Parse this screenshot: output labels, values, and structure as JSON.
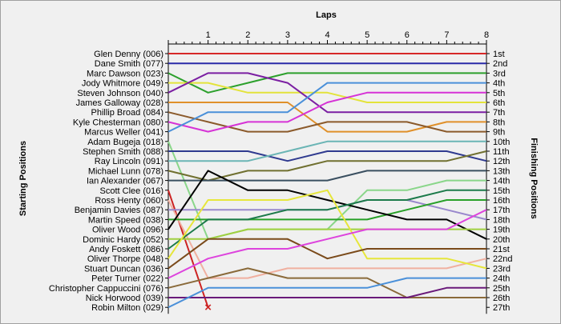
{
  "chart_data": {
    "type": "line",
    "title": "Laps",
    "ylabel_left": "Starting Positions",
    "ylabel_right": "Finishing Positions",
    "x": [
      0,
      1,
      2,
      3,
      4,
      5,
      6,
      7,
      8
    ],
    "x_ticks": [
      "1",
      "2",
      "3",
      "4",
      "5",
      "6",
      "7",
      "8"
    ],
    "xlim": [
      0,
      8
    ],
    "ylim": [
      1,
      27
    ],
    "grid": false,
    "finishing_labels": [
      "1st",
      "2nd",
      "3rd",
      "4th",
      "5th",
      "6th",
      "7th",
      "8th",
      "9th",
      "10th",
      "11th",
      "12th",
      "13th",
      "14th",
      "15th",
      "16th",
      "17th",
      "18th",
      "19th",
      "20th",
      "21st",
      "22nd",
      "23rd",
      "24th",
      "25th",
      "26th",
      "27th"
    ],
    "series": [
      {
        "name": "Glen Denny (006)",
        "color": "#d62828",
        "positions": [
          1,
          1,
          1,
          1,
          1,
          1,
          1,
          1,
          1
        ]
      },
      {
        "name": "Dane Smith (077)",
        "color": "#2a2aa8",
        "positions": [
          2,
          2,
          2,
          2,
          2,
          2,
          2,
          2,
          2
        ]
      },
      {
        "name": "Marc Dawson (023)",
        "color": "#2ca02c",
        "positions": [
          3,
          5,
          4,
          3,
          3,
          3,
          3,
          3,
          3
        ]
      },
      {
        "name": "Jody Whitmore (049)",
        "color": "#e3e33b",
        "positions": [
          4,
          4,
          5,
          5,
          5,
          6,
          6,
          6,
          6
        ]
      },
      {
        "name": "Steven Johnson (040)",
        "color": "#7b1fa2",
        "positions": [
          5,
          3,
          3,
          4,
          7,
          7,
          7,
          7,
          7
        ]
      },
      {
        "name": "James Galloway (028)",
        "color": "#e0902a",
        "positions": [
          6,
          6,
          6,
          6,
          9,
          9,
          9,
          8,
          8
        ]
      },
      {
        "name": "Phillip Broad (084)",
        "color": "#8b5a2b",
        "positions": [
          7,
          8,
          9,
          9,
          8,
          8,
          8,
          9,
          9
        ]
      },
      {
        "name": "Kyle Chesterman (080)",
        "color": "#d633d6",
        "positions": [
          8,
          9,
          8,
          8,
          6,
          5,
          5,
          5,
          5
        ]
      },
      {
        "name": "Marcus Weller (041)",
        "color": "#4a90d9",
        "positions": [
          9,
          7,
          7,
          7,
          4,
          4,
          4,
          4,
          4
        ]
      },
      {
        "name": "Adam Bugeja (018)",
        "color": "#8ad68a",
        "positions": [
          10,
          20,
          19,
          19,
          19,
          15,
          15,
          14,
          14
        ]
      },
      {
        "name": "Stephen Smith (088)",
        "color": "#2f3a8f",
        "positions": [
          11,
          11,
          11,
          12,
          11,
          11,
          11,
          11,
          12
        ]
      },
      {
        "name": "Ray Lincoln (091)",
        "color": "#6bb5b5",
        "positions": [
          12,
          12,
          12,
          11,
          10,
          10,
          10,
          10,
          10
        ]
      },
      {
        "name": "Michael Lunn (078)",
        "color": "#707030",
        "positions": [
          13,
          14,
          13,
          13,
          12,
          12,
          12,
          12,
          11
        ]
      },
      {
        "name": "Ian Alexander (067)",
        "color": "#3a4f60",
        "positions": [
          14,
          14,
          14,
          14,
          14,
          13,
          13,
          13,
          13
        ]
      },
      {
        "name": "Scott Clee (016)",
        "color": "#cc2222",
        "positions": [
          15,
          27,
          null,
          null,
          null,
          null,
          null,
          null,
          null
        ]
      },
      {
        "name": "Ross Henty (060)",
        "color": "#f0b0a0",
        "positions": [
          16,
          24,
          24,
          23,
          23,
          23,
          23,
          23,
          22
        ]
      },
      {
        "name": "Benjamin Davies (087)",
        "color": "#9988cc",
        "positions": [
          17,
          17,
          17,
          17,
          17,
          16,
          16,
          17,
          18
        ]
      },
      {
        "name": "Martin Speed (038)",
        "color": "#28a028",
        "positions": [
          18,
          18,
          18,
          18,
          18,
          18,
          17,
          16,
          16
        ]
      },
      {
        "name": "Oliver Wood (096)",
        "color": "#000000",
        "positions": [
          19,
          13,
          15,
          15,
          16,
          17,
          18,
          18,
          20
        ]
      },
      {
        "name": "Dominic Hardy (052)",
        "color": "#a0d040",
        "positions": [
          20,
          20,
          19,
          19,
          19,
          19,
          19,
          19,
          19
        ]
      },
      {
        "name": "Andy Foskett (086)",
        "color": "#1c7a4a",
        "positions": [
          21,
          18,
          18,
          17,
          17,
          16,
          16,
          15,
          15
        ]
      },
      {
        "name": "Oliver Thorpe (048)",
        "color": "#e6e63b",
        "positions": [
          22,
          16,
          16,
          16,
          15,
          22,
          22,
          22,
          23
        ]
      },
      {
        "name": "Stuart Duncan (036)",
        "color": "#7a4a1a",
        "positions": [
          23,
          20,
          20,
          20,
          22,
          21,
          21,
          21,
          21
        ]
      },
      {
        "name": "Peter Turner (022)",
        "color": "#dd44dd",
        "positions": [
          24,
          22,
          21,
          21,
          20,
          19,
          19,
          19,
          17
        ]
      },
      {
        "name": "Christopher Cappuccini (076)",
        "color": "#8a6a3a",
        "positions": [
          25,
          24,
          23,
          24,
          24,
          24,
          26,
          26,
          26
        ]
      },
      {
        "name": "Nick Horwood (039)",
        "color": "#6a1a7a",
        "positions": [
          26,
          26,
          26,
          26,
          26,
          26,
          26,
          25,
          25
        ]
      },
      {
        "name": "Robin Milton (029)",
        "color": "#4a90d9",
        "positions": [
          27,
          25,
          25,
          25,
          25,
          25,
          24,
          24,
          24
        ]
      }
    ],
    "retired_marker": {
      "series": "Scott Clee (016)",
      "x": 1,
      "y": 27,
      "symbol": "×"
    }
  }
}
